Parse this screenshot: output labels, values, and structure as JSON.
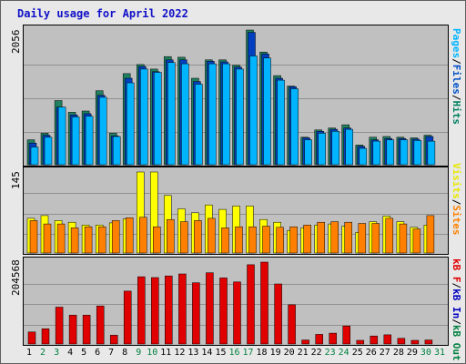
{
  "title": "Daily usage for April 2022",
  "days": [
    "1",
    "2",
    "3",
    "4",
    "5",
    "6",
    "7",
    "8",
    "9",
    "10",
    "11",
    "12",
    "13",
    "14",
    "15",
    "16",
    "17",
    "18",
    "19",
    "20",
    "21",
    "22",
    "23",
    "24",
    "25",
    "26",
    "27",
    "28",
    "29",
    "30",
    "31"
  ],
  "weekend_days": [
    "2",
    "3",
    "9",
    "10",
    "16",
    "17",
    "23",
    "24",
    "30",
    "31"
  ],
  "panels": {
    "hits": {
      "max_label": "2056",
      "legend": [
        {
          "text": "Pages",
          "color": "#00b4ff"
        },
        {
          "text": "Files",
          "color": "#0050c8"
        },
        {
          "text": "Hits",
          "color": "#008060"
        }
      ],
      "sep": "/"
    },
    "visits": {
      "max_label": "145",
      "legend": [
        {
          "text": "Visits",
          "color": "#e8e800"
        },
        {
          "text": "Sites",
          "color": "#ff8000"
        }
      ],
      "sep": "/"
    },
    "kb": {
      "max_label": "204568",
      "legend": [
        {
          "text": "kB F",
          "color": "#e00000"
        },
        {
          "text": "kB In",
          "color": "#0000c0"
        },
        {
          "text": "kB Out",
          "color": "#008040"
        }
      ],
      "sep": "/"
    }
  },
  "colors": {
    "hits": "#208060",
    "files": "#0040c0",
    "pages": "#00b4ff",
    "visits": "#ffff00",
    "sites": "#ff8000",
    "kbytes": "#e00000",
    "plot_bg": "#c0c0c0",
    "grid": "#909090"
  },
  "chart_data": [
    {
      "type": "bar",
      "title": "Daily usage for April 2022",
      "ylabel_max": 2056,
      "categories": [
        "1",
        "2",
        "3",
        "4",
        "5",
        "6",
        "7",
        "8",
        "9",
        "10",
        "11",
        "12",
        "13",
        "14",
        "15",
        "16",
        "17",
        "18",
        "19",
        "20",
        "21",
        "22",
        "23",
        "24",
        "25",
        "26",
        "27",
        "28",
        "29",
        "30"
      ],
      "series": [
        {
          "name": "Hits",
          "values": [
            380,
            480,
            980,
            800,
            820,
            1130,
            480,
            1390,
            1530,
            1460,
            1650,
            1640,
            1320,
            1600,
            1600,
            1520,
            2056,
            1720,
            1360,
            1200,
            420,
            530,
            560,
            610,
            300,
            420,
            430,
            420,
            410,
            450
          ]
        },
        {
          "name": "Files",
          "values": [
            330,
            450,
            880,
            760,
            780,
            1060,
            440,
            1320,
            1500,
            1420,
            1600,
            1600,
            1270,
            1580,
            1570,
            1490,
            2020,
            1690,
            1320,
            1190,
            410,
            510,
            540,
            560,
            280,
            380,
            400,
            400,
            390,
            430
          ]
        },
        {
          "name": "Pages",
          "values": [
            270,
            420,
            880,
            730,
            740,
            1030,
            430,
            1250,
            1460,
            1410,
            1560,
            1540,
            1230,
            1540,
            1540,
            1460,
            1660,
            1630,
            1290,
            1160,
            380,
            480,
            510,
            540,
            250,
            360,
            380,
            380,
            370,
            360
          ]
        }
      ]
    },
    {
      "type": "bar",
      "ylabel_max": 145,
      "categories": [
        "1",
        "2",
        "3",
        "4",
        "5",
        "6",
        "7",
        "8",
        "9",
        "10",
        "11",
        "12",
        "13",
        "14",
        "15",
        "16",
        "17",
        "18",
        "19",
        "20",
        "21",
        "22",
        "23",
        "24",
        "25",
        "26",
        "27",
        "28",
        "29",
        "30"
      ],
      "series": [
        {
          "name": "Visits",
          "values": [
            62,
            67,
            58,
            55,
            50,
            50,
            54,
            61,
            145,
            145,
            103,
            79,
            72,
            86,
            78,
            84,
            84,
            60,
            55,
            40,
            45,
            50,
            52,
            48,
            37,
            56,
            66,
            56,
            46,
            50
          ]
        },
        {
          "name": "Sites",
          "values": [
            58,
            52,
            52,
            45,
            47,
            47,
            58,
            63,
            64,
            47,
            60,
            56,
            58,
            62,
            45,
            47,
            47,
            48,
            46,
            47,
            50,
            55,
            56,
            55,
            53,
            53,
            62,
            52,
            43,
            67
          ]
        }
      ]
    },
    {
      "type": "bar",
      "ylabel_max": 204568,
      "categories": [
        "1",
        "2",
        "3",
        "4",
        "5",
        "6",
        "7",
        "8",
        "9",
        "10",
        "11",
        "12",
        "13",
        "14",
        "15",
        "16",
        "17",
        "18",
        "19",
        "20",
        "21",
        "22",
        "23",
        "24",
        "25",
        "26",
        "27",
        "28",
        "29",
        "30"
      ],
      "series": [
        {
          "name": "kB F",
          "values": [
            30000,
            38000,
            92000,
            72000,
            72000,
            95000,
            22000,
            132000,
            168000,
            166000,
            170000,
            175000,
            153000,
            178000,
            165000,
            155000,
            198000,
            204568,
            150000,
            98000,
            10000,
            24000,
            27000,
            45000,
            9000,
            20000,
            23000,
            14000,
            9000,
            10000
          ]
        }
      ]
    }
  ]
}
